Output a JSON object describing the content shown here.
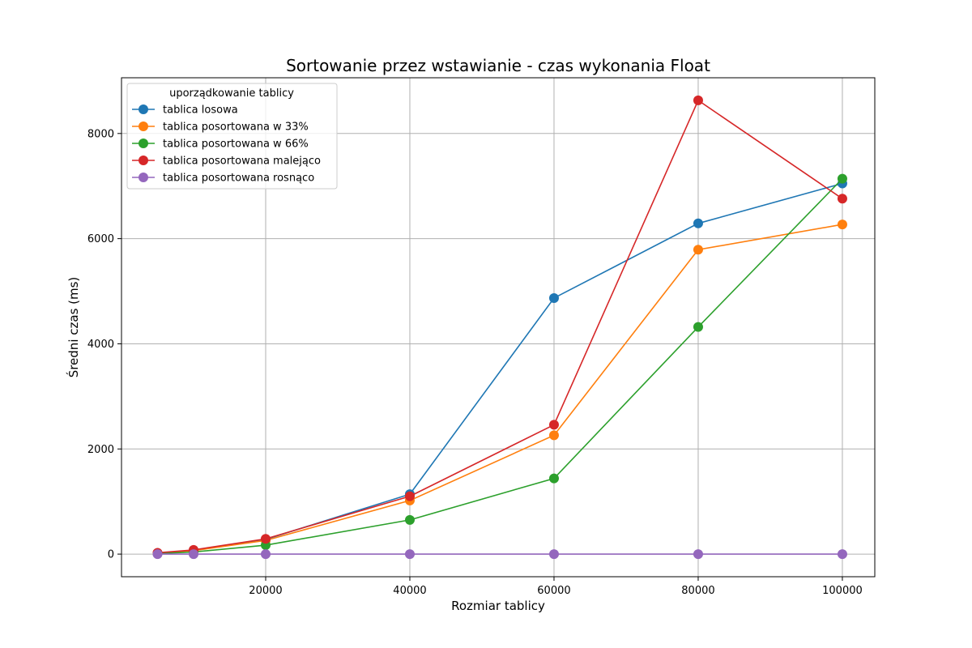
{
  "chart_data": {
    "type": "line",
    "title": "Sortowanie przez wstawianie - czas wykonania Float",
    "xlabel": "Rozmiar tablicy",
    "ylabel": "Średni czas (ms)",
    "x": [
      5000,
      10000,
      20000,
      40000,
      60000,
      80000,
      100000
    ],
    "xlim": [
      0,
      104500
    ],
    "ylim": [
      -430,
      9060
    ],
    "xticks": [
      20000,
      40000,
      60000,
      80000,
      100000
    ],
    "yticks": [
      0,
      2000,
      4000,
      6000,
      8000
    ],
    "grid": true,
    "legend": {
      "title": "uporządkowanie tablicy",
      "placement": "top-left"
    },
    "series": [
      {
        "name": "tablica losowa",
        "color": "#1f77b4",
        "values": [
          20,
          70,
          280,
          1140,
          4870,
          6290,
          7050
        ]
      },
      {
        "name": "tablica posortowana w 33%",
        "color": "#ff7f0e",
        "values": [
          18,
          65,
          260,
          1020,
          2260,
          5790,
          6270
        ]
      },
      {
        "name": "tablica posortowana w 66%",
        "color": "#2ca02c",
        "values": [
          10,
          40,
          170,
          650,
          1440,
          4320,
          7140
        ]
      },
      {
        "name": "tablica posortowana malejąco",
        "color": "#d62728",
        "values": [
          25,
          80,
          290,
          1100,
          2460,
          8630,
          6760
        ]
      },
      {
        "name": "tablica posortowana rosnąco",
        "color": "#9467bd",
        "values": [
          0,
          0,
          0,
          0,
          0,
          0,
          0
        ]
      }
    ]
  }
}
